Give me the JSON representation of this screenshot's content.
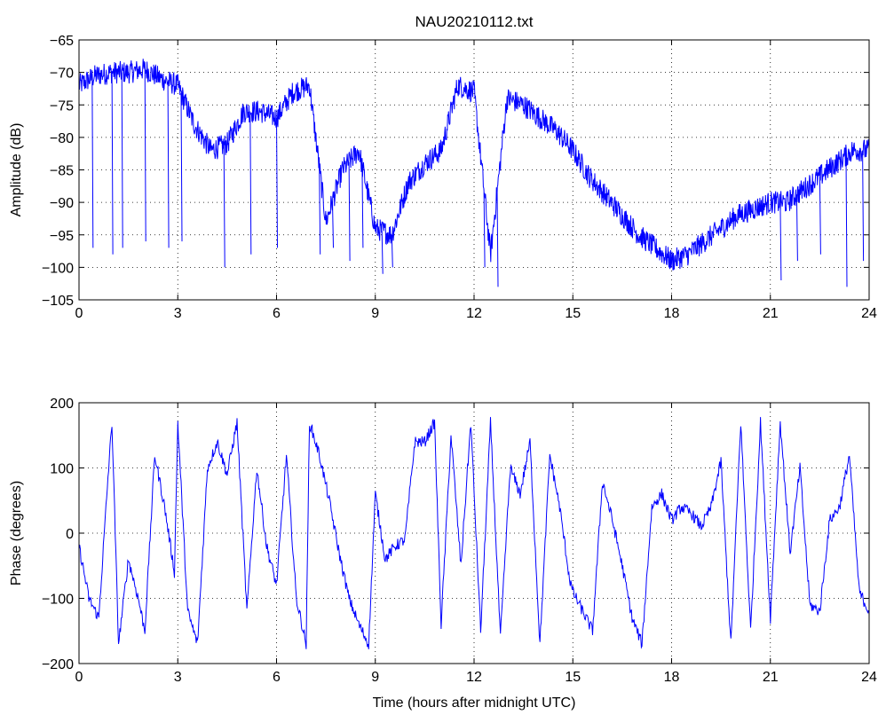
{
  "chart_data": [
    {
      "type": "line",
      "title": "NAU20210112.txt",
      "xlabel": "",
      "ylabel": "Amplitude (dB)",
      "xlim": [
        0,
        24
      ],
      "ylim": [
        -105,
        -65
      ],
      "xticks": [
        0,
        3,
        6,
        9,
        12,
        15,
        18,
        21,
        24
      ],
      "yticks": [
        -65,
        -70,
        -75,
        -80,
        -85,
        -90,
        -95,
        -100,
        -105
      ],
      "grid": true,
      "series": [
        {
          "color": "#0000ff",
          "x": [
            0,
            0.5,
            1,
            1.5,
            2,
            2.5,
            3,
            3.5,
            4,
            4.5,
            5,
            5.5,
            6,
            6.5,
            7,
            7.5,
            8,
            8.5,
            9,
            9.5,
            10,
            10.5,
            11,
            11.5,
            12,
            12.5,
            13,
            13.5,
            14,
            14.5,
            15,
            15.5,
            16,
            16.5,
            17,
            17.5,
            18,
            18.5,
            19,
            19.5,
            20,
            20.5,
            21,
            21.5,
            22,
            22.5,
            23,
            23.5,
            24
          ],
          "y": [
            -72,
            -70.5,
            -70,
            -70,
            -69.5,
            -71,
            -72,
            -78,
            -82,
            -81,
            -76,
            -76,
            -77,
            -73,
            -72,
            -93,
            -85,
            -82,
            -94,
            -95,
            -87,
            -84,
            -82,
            -72,
            -73,
            -98,
            -74,
            -75,
            -77,
            -79,
            -82,
            -86,
            -89,
            -92,
            -95,
            -97,
            -99,
            -98,
            -96,
            -94,
            -92,
            -91,
            -90,
            -90,
            -88,
            -86,
            -84,
            -82,
            -82
          ]
        }
      ],
      "dips": [
        [
          0.4,
          -97
        ],
        [
          1.0,
          -98
        ],
        [
          1.3,
          -97
        ],
        [
          2.0,
          -96
        ],
        [
          2.7,
          -97
        ],
        [
          3.1,
          -96
        ],
        [
          4.4,
          -100
        ],
        [
          5.2,
          -98
        ],
        [
          6.0,
          -97
        ],
        [
          7.3,
          -98
        ],
        [
          7.7,
          -97
        ],
        [
          8.2,
          -99
        ],
        [
          8.6,
          -97
        ],
        [
          9.2,
          -101
        ],
        [
          9.5,
          -100
        ],
        [
          12.3,
          -100
        ],
        [
          12.7,
          -103
        ],
        [
          21.3,
          -102
        ],
        [
          21.8,
          -99
        ],
        [
          22.5,
          -98
        ],
        [
          23.3,
          -103
        ],
        [
          23.8,
          -99
        ]
      ]
    },
    {
      "type": "line",
      "title": "",
      "xlabel": "Time (hours after midnight UTC)",
      "ylabel": "Phase (degrees)",
      "xlim": [
        0,
        24
      ],
      "ylim": [
        -200,
        200
      ],
      "xticks": [
        0,
        3,
        6,
        9,
        12,
        15,
        18,
        21,
        24
      ],
      "yticks": [
        200,
        100,
        0,
        -100,
        -200
      ],
      "grid": true,
      "series": [
        {
          "color": "#0000ff",
          "x": [
            0,
            0.3,
            0.6,
            0.9,
            1.0,
            1.2,
            1.5,
            1.8,
            2.0,
            2.3,
            2.6,
            2.9,
            3.0,
            3.3,
            3.6,
            3.9,
            4.2,
            4.5,
            4.8,
            5.1,
            5.4,
            5.7,
            6.0,
            6.3,
            6.6,
            6.9,
            7.0,
            7.3,
            7.6,
            7.9,
            8.2,
            8.5,
            8.8,
            9.0,
            9.3,
            9.6,
            9.9,
            10.2,
            10.5,
            10.8,
            11.0,
            11.3,
            11.6,
            11.9,
            12.2,
            12.5,
            12.8,
            13.1,
            13.4,
            13.7,
            14.0,
            14.3,
            14.6,
            14.9,
            15.0,
            15.3,
            15.6,
            15.9,
            16.2,
            16.5,
            16.8,
            17.1,
            17.4,
            17.7,
            18.0,
            18.3,
            18.6,
            18.9,
            19.2,
            19.5,
            19.8,
            20.1,
            20.4,
            20.7,
            21.0,
            21.3,
            21.6,
            21.9,
            22.2,
            22.5,
            22.8,
            23.1,
            23.4,
            23.7,
            24.0
          ],
          "y": [
            -20,
            -100,
            -130,
            100,
            170,
            -170,
            -40,
            -100,
            -150,
            120,
            40,
            -60,
            170,
            -120,
            -170,
            100,
            140,
            90,
            170,
            -120,
            100,
            -20,
            -80,
            120,
            -100,
            -170,
            170,
            120,
            50,
            -30,
            -100,
            -140,
            -170,
            60,
            -40,
            -20,
            -10,
            140,
            140,
            170,
            -140,
            150,
            -50,
            170,
            -150,
            170,
            -160,
            100,
            60,
            140,
            -170,
            120,
            40,
            -70,
            -90,
            -120,
            -150,
            80,
            20,
            -50,
            -130,
            -170,
            40,
            60,
            20,
            40,
            30,
            10,
            40,
            110,
            -170,
            170,
            -150,
            170,
            -130,
            170,
            -30,
            100,
            -110,
            -120,
            20,
            40,
            120,
            -90,
            -120
          ]
        }
      ]
    }
  ]
}
